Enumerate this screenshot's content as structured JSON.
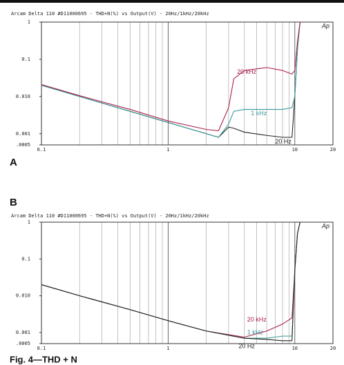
{
  "panels": [
    "A",
    "B"
  ],
  "caption": "Fig. 4—THD + N",
  "chart_data": [
    {
      "type": "line",
      "title": "Arcam Delta 110 #D11000695 - THD+N(%) vs Output(V) - 20Hz/1kHz/20kHz",
      "corner_label": "Ap",
      "log_x": true,
      "log_y": true,
      "grid": true,
      "xlim": [
        0.1,
        20
      ],
      "xticks": [
        {
          "value": 0.1,
          "label": "0.1"
        },
        1,
        10,
        20
      ],
      "ylim": [
        0.0005,
        1
      ],
      "yticks": [
        1,
        {
          "value": 0.1,
          "label": "0.1"
        },
        {
          "value": 0.01,
          "label": "0.010"
        },
        {
          "value": 0.001,
          "label": "0.001"
        },
        {
          "value": 0.0005,
          "label": ".0005"
        }
      ],
      "x": [
        0.1,
        0.2,
        0.5,
        1,
        2,
        2.5,
        3,
        3.3,
        4,
        6,
        8,
        9.5,
        10,
        10.5,
        11
      ],
      "series": [
        {
          "name": "20 Hz",
          "color": "#222222",
          "values": [
            0.02,
            0.01,
            0.004,
            0.002,
            0.001,
            0.0008,
            0.0015,
            0.0014,
            0.0011,
            0.0009,
            0.0008,
            0.0008,
            0.01,
            0.2,
            1
          ]
        },
        {
          "name": "1 kHz",
          "color": "#3a9a9a",
          "values": [
            0.02,
            0.01,
            0.004,
            0.002,
            0.001,
            0.0008,
            0.0018,
            0.004,
            0.0045,
            0.0045,
            0.0045,
            0.005,
            0.01,
            0.2,
            1
          ]
        },
        {
          "name": "20 kHz",
          "color": "#a8204a",
          "values": [
            0.021,
            0.0105,
            0.0045,
            0.0022,
            0.0013,
            0.0012,
            0.005,
            0.03,
            0.05,
            0.06,
            0.05,
            0.04,
            0.05,
            0.3,
            1
          ]
        }
      ]
    },
    {
      "type": "line",
      "title": "Arcam Delta 110 #D11000695 - THD+N(%) vs Output(V) - 20Hz/1kHz/20kHz",
      "corner_label": "Ap",
      "log_x": true,
      "log_y": true,
      "grid": true,
      "xlim": [
        0.1,
        20
      ],
      "xticks": [
        {
          "value": 0.1,
          "label": "0.1"
        },
        1,
        10,
        20
      ],
      "ylim": [
        0.0005,
        1
      ],
      "yticks": [
        1,
        {
          "value": 0.1,
          "label": "0.1"
        },
        {
          "value": 0.01,
          "label": "0.010"
        },
        {
          "value": 0.001,
          "label": "0.001"
        },
        {
          "value": 0.0005,
          "label": ".0005"
        }
      ],
      "x": [
        0.1,
        0.2,
        0.5,
        1,
        2,
        4,
        6,
        8,
        9.5,
        10,
        10.5,
        11
      ],
      "series": [
        {
          "name": "20 kHz",
          "color": "#a8204a",
          "values": [
            0.02,
            0.01,
            0.0042,
            0.0021,
            0.0011,
            0.00075,
            0.0011,
            0.0017,
            0.0025,
            0.05,
            0.5,
            1
          ]
        },
        {
          "name": "1 kHz",
          "color": "#3a9a9a",
          "values": [
            0.02,
            0.01,
            0.0042,
            0.0021,
            0.0011,
            0.0007,
            0.0007,
            0.0008,
            0.0008,
            0.05,
            0.5,
            1
          ]
        },
        {
          "name": "20 Hz",
          "color": "#222222",
          "values": [
            0.02,
            0.01,
            0.0042,
            0.0021,
            0.0011,
            0.0007,
            0.00065,
            0.0006,
            0.0006,
            0.05,
            0.5,
            1
          ]
        }
      ]
    }
  ]
}
